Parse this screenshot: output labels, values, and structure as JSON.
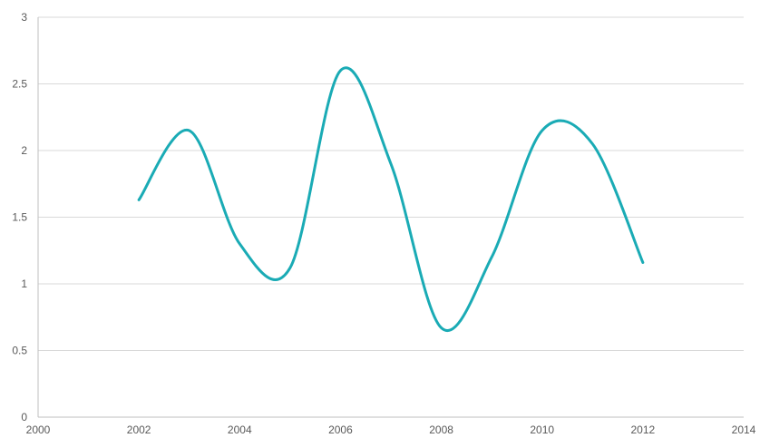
{
  "chart_data": {
    "type": "line",
    "title": "",
    "xlabel": "",
    "ylabel": "",
    "xlim": [
      2000,
      2014
    ],
    "ylim": [
      0,
      3
    ],
    "x_ticks": [
      2000,
      2002,
      2004,
      2006,
      2008,
      2010,
      2012,
      2014
    ],
    "y_ticks": [
      0,
      0.5,
      1,
      1.5,
      2,
      2.5,
      3
    ],
    "x_tick_labels": [
      "2000",
      "2002",
      "2004",
      "2006",
      "2008",
      "2010",
      "2012",
      "2014"
    ],
    "y_tick_labels": [
      "0",
      "0.5",
      "1",
      "1.5",
      "2",
      "2.5",
      "3"
    ],
    "grid": true,
    "legend": "none",
    "series": [
      {
        "color": "#1aabb5",
        "smooth": true,
        "x": [
          2002,
          2003,
          2004,
          2005,
          2006,
          2007,
          2008,
          2009,
          2010,
          2011,
          2012
        ],
        "y": [
          1.63,
          2.15,
          1.3,
          1.12,
          2.6,
          1.9,
          0.67,
          1.2,
          2.15,
          2.05,
          1.16
        ]
      }
    ]
  }
}
